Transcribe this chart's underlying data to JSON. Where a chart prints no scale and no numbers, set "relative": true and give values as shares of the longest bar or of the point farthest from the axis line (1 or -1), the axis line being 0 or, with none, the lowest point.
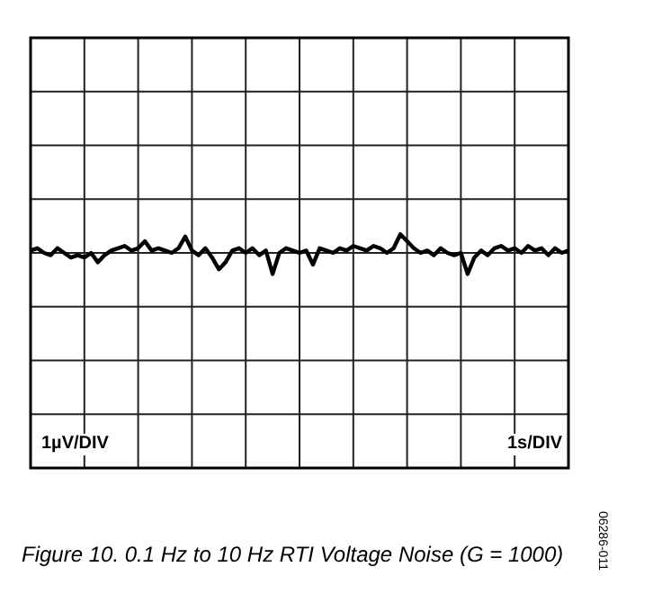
{
  "chart_data": {
    "type": "line",
    "title": "Figure 10. 0.1 Hz to 10 Hz RTI Voltage Noise (G = 1000)",
    "annotations": [
      "1µV/DIV",
      "1s/DIV",
      "06286-011"
    ],
    "relative": true,
    "categories": [
      null,
      null,
      null,
      null,
      null,
      null,
      null,
      null,
      null,
      null,
      null,
      null,
      null,
      null,
      null,
      null,
      null,
      null,
      null,
      null,
      null,
      null,
      null,
      null,
      null,
      null,
      null,
      null,
      null,
      null,
      null,
      null,
      null,
      null,
      null,
      null,
      null,
      null,
      null,
      null,
      null,
      null,
      null,
      null,
      null,
      null,
      null,
      null,
      null,
      null,
      null,
      null,
      null,
      null,
      null,
      null,
      null,
      null,
      null,
      null,
      null,
      null,
      null,
      null,
      null,
      null,
      null,
      null,
      null,
      null,
      null,
      null,
      null,
      null,
      null,
      null,
      null,
      null,
      null,
      null,
      null
    ],
    "series": [
      {
        "color": "#000000",
        "values": [
          0.93,
          0.94,
          0.92,
          0.91,
          0.94,
          0.92,
          0.9,
          0.91,
          0.9,
          0.92,
          0.88,
          0.91,
          0.93,
          0.94,
          0.95,
          0.93,
          0.94,
          0.97,
          0.93,
          0.94,
          0.93,
          0.92,
          0.94,
          0.99,
          0.93,
          0.91,
          0.94,
          0.9,
          0.85,
          0.88,
          0.93,
          0.94,
          0.92,
          0.94,
          0.91,
          0.93,
          0.83,
          0.92,
          0.94,
          0.93,
          0.92,
          0.93,
          0.87,
          0.94,
          0.93,
          0.92,
          0.94,
          0.93,
          0.95,
          0.94,
          0.93,
          0.95,
          0.94,
          0.92,
          0.94,
          1,
          0.97,
          0.94,
          0.92,
          0.93,
          0.91,
          0.94,
          0.92,
          0.91,
          0.92,
          0.83,
          0.9,
          0.93,
          0.91,
          0.94,
          0.95,
          0.93,
          0.94,
          0.92,
          0.95,
          0.93,
          0.94,
          0.91,
          0.94,
          0.92,
          0.93
        ]
      }
    ],
    "grid": true,
    "legend": false,
    "marker": "none",
    "line_style": "solid"
  }
}
